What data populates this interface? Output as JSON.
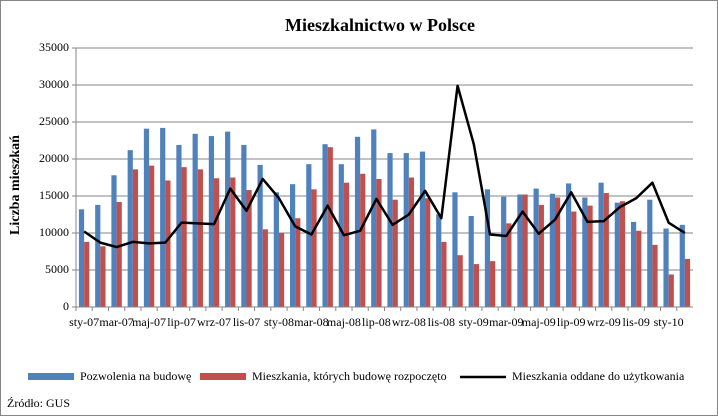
{
  "chart_data": {
    "type": "bar_line",
    "title": "Mieszkalnictwo w Polsce",
    "y_label": "Liczba mieszkań",
    "source": "Źródło: GUS",
    "categories": [
      "sty-07",
      null,
      "mar-07",
      null,
      "maj-07",
      null,
      "lip-07",
      null,
      "wrz-07",
      null,
      "lis-07",
      null,
      "sty-08",
      null,
      "mar-08",
      null,
      "maj-08",
      null,
      "lip-08",
      null,
      "wrz-08",
      null,
      "lis-08",
      null,
      "sty-09",
      null,
      "mar-09",
      null,
      "maj-09",
      null,
      "lip-09",
      null,
      "wrz-09",
      null,
      "lis-09",
      null,
      "sty-10",
      null
    ],
    "series": [
      {
        "name": "Pozwolenia na budowę",
        "color": "#4f81bd",
        "kind": "bar",
        "values": [
          13200,
          13800,
          17800,
          21200,
          24100,
          24200,
          21900,
          23400,
          23100,
          23700,
          21900,
          19200,
          15500,
          16600,
          19300,
          22000,
          19300,
          23000,
          24000,
          20800,
          20800,
          21000,
          12500,
          15500,
          12300,
          15900,
          14900,
          15200,
          16000,
          15300,
          16700,
          14800,
          16800,
          14100,
          11500,
          14500,
          10600,
          11100
        ]
      },
      {
        "name": "Mieszkania, których budowę rozpoczęto",
        "color": "#c0504d",
        "kind": "bar",
        "values": [
          8800,
          8200,
          14200,
          18600,
          19100,
          17100,
          18900,
          18600,
          17400,
          17500,
          15800,
          10500,
          10000,
          12000,
          15900,
          21600,
          16800,
          18000,
          17300,
          14500,
          17500,
          14700,
          8800,
          7000,
          5800,
          6200,
          11300,
          15200,
          13800,
          14800,
          12900,
          13700,
          15400,
          14300,
          10300,
          8400,
          4400,
          6500
        ]
      },
      {
        "name": "Mieszkania oddane do użytkowania",
        "color": "#000000",
        "kind": "line",
        "values": [
          10200,
          8700,
          8100,
          8800,
          8600,
          8700,
          11400,
          11300,
          11200,
          16000,
          13000,
          17300,
          14700,
          10900,
          9800,
          13700,
          9700,
          10300,
          14600,
          11100,
          12500,
          15700,
          12000,
          29900,
          22000,
          9800,
          9600,
          12900,
          9900,
          11800,
          15500,
          11500,
          11600,
          13500,
          14700,
          16800,
          11400,
          10000
        ]
      }
    ],
    "ylim": [
      0,
      35000
    ],
    "yticks": [
      0,
      5000,
      10000,
      15000,
      20000,
      25000,
      30000,
      35000
    ],
    "legend": "bottom"
  }
}
